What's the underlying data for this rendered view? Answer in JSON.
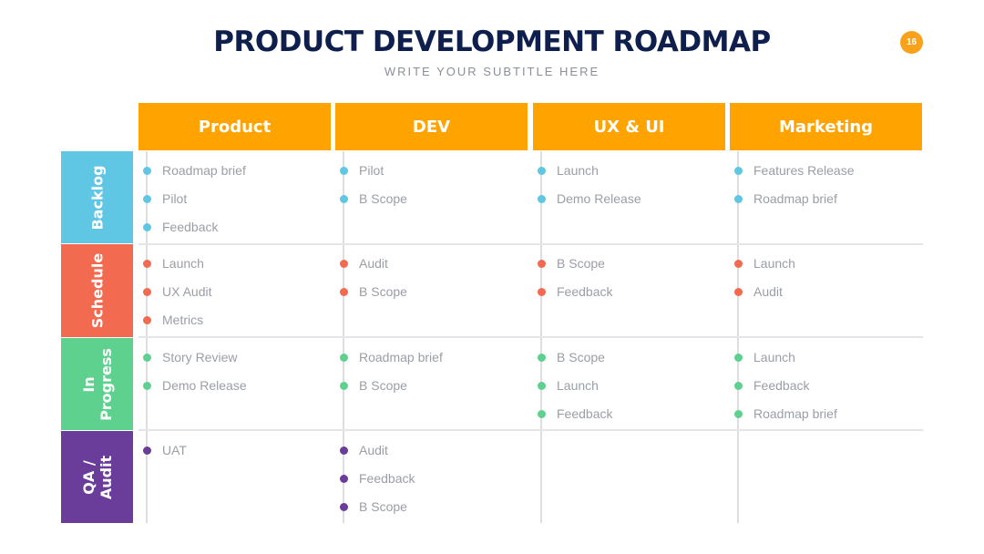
{
  "header": {
    "title": "PRODUCT DEVELOPMENT ROADMAP",
    "subtitle": "WRITE YOUR SUBTITLE HERE",
    "page_number": "16"
  },
  "colors": {
    "header_orange": "#ffa300",
    "backlog": "#5fc6e3",
    "schedule": "#f26a4f",
    "in_progress": "#5ed18f",
    "qa_audit": "#6a3d9a",
    "badge": "#f8a21b",
    "title": "#0f1f4d"
  },
  "columns": [
    "Product",
    "DEV",
    "UX & UI",
    "Marketing"
  ],
  "rows": [
    {
      "label": "Backlog",
      "color": "#5fc6e3",
      "cells": [
        [
          "Roadmap brief",
          "Pilot",
          "Feedback"
        ],
        [
          "Pilot",
          "B Scope"
        ],
        [
          "Launch",
          "Demo Release"
        ],
        [
          "Features Release",
          "Roadmap brief"
        ]
      ]
    },
    {
      "label": "Schedule",
      "color": "#f26a4f",
      "cells": [
        [
          "Launch",
          "UX Audit",
          "Metrics"
        ],
        [
          "Audit",
          "B Scope"
        ],
        [
          "B Scope",
          "Feedback"
        ],
        [
          "Launch",
          "Audit"
        ]
      ]
    },
    {
      "label": "In\nProgress",
      "color": "#5ed18f",
      "cells": [
        [
          "Story Review",
          "Demo Release"
        ],
        [
          "Roadmap brief",
          "B Scope"
        ],
        [
          "B Scope",
          "Launch",
          "Feedback"
        ],
        [
          "Launch",
          "Feedback",
          "Roadmap brief"
        ]
      ]
    },
    {
      "label": "QA /\nAudit",
      "color": "#6a3d9a",
      "cells": [
        [
          "UAT"
        ],
        [
          "Audit",
          "Feedback",
          "B Scope"
        ],
        [],
        []
      ]
    }
  ]
}
